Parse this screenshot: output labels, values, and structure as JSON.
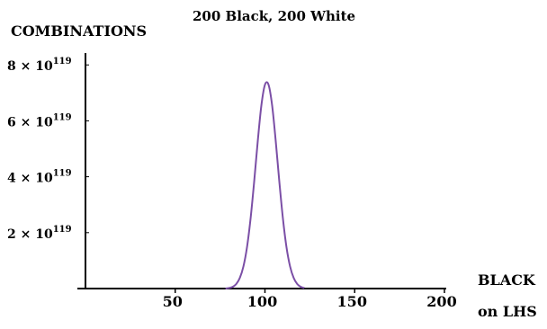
{
  "chart_data": {
    "type": "line",
    "title": "200 Black, 200 White",
    "ylabel": "COMBINATIONS",
    "xlabel": [
      "BLACK",
      "on LHS"
    ],
    "xlim": [
      0,
      200
    ],
    "ylim_units_1e119": [
      0,
      8.2
    ],
    "x_ticks": [
      0,
      50,
      100,
      150,
      200
    ],
    "x_tick_labels": [
      "50",
      "100",
      "150",
      "200"
    ],
    "y_ticks": [
      {
        "value_1e119": 2,
        "mantissa": "2 × 10",
        "exponent": "119"
      },
      {
        "value_1e119": 4,
        "mantissa": "4 × 10",
        "exponent": "119"
      },
      {
        "value_1e119": 6,
        "mantissa": "6 × 10",
        "exponent": "119"
      },
      {
        "value_1e119": 8,
        "mantissa": "8 × 10",
        "exponent": "119"
      }
    ],
    "series": [
      {
        "color": "#7b4fa6",
        "x": [
          78,
          80,
          82,
          84,
          86,
          88,
          90,
          92,
          94,
          96,
          98,
          100,
          102,
          104,
          106,
          108,
          110,
          112,
          114,
          116,
          118,
          120,
          122
        ],
        "y_1e119": [
          0.0,
          0.02,
          0.06,
          0.16,
          0.38,
          0.79,
          1.48,
          2.51,
          3.83,
          5.28,
          6.55,
          7.29,
          7.29,
          6.55,
          5.28,
          3.83,
          2.51,
          1.48,
          0.79,
          0.38,
          0.16,
          0.06,
          0.02
        ]
      }
    ],
    "grid": false,
    "legend": "none"
  }
}
